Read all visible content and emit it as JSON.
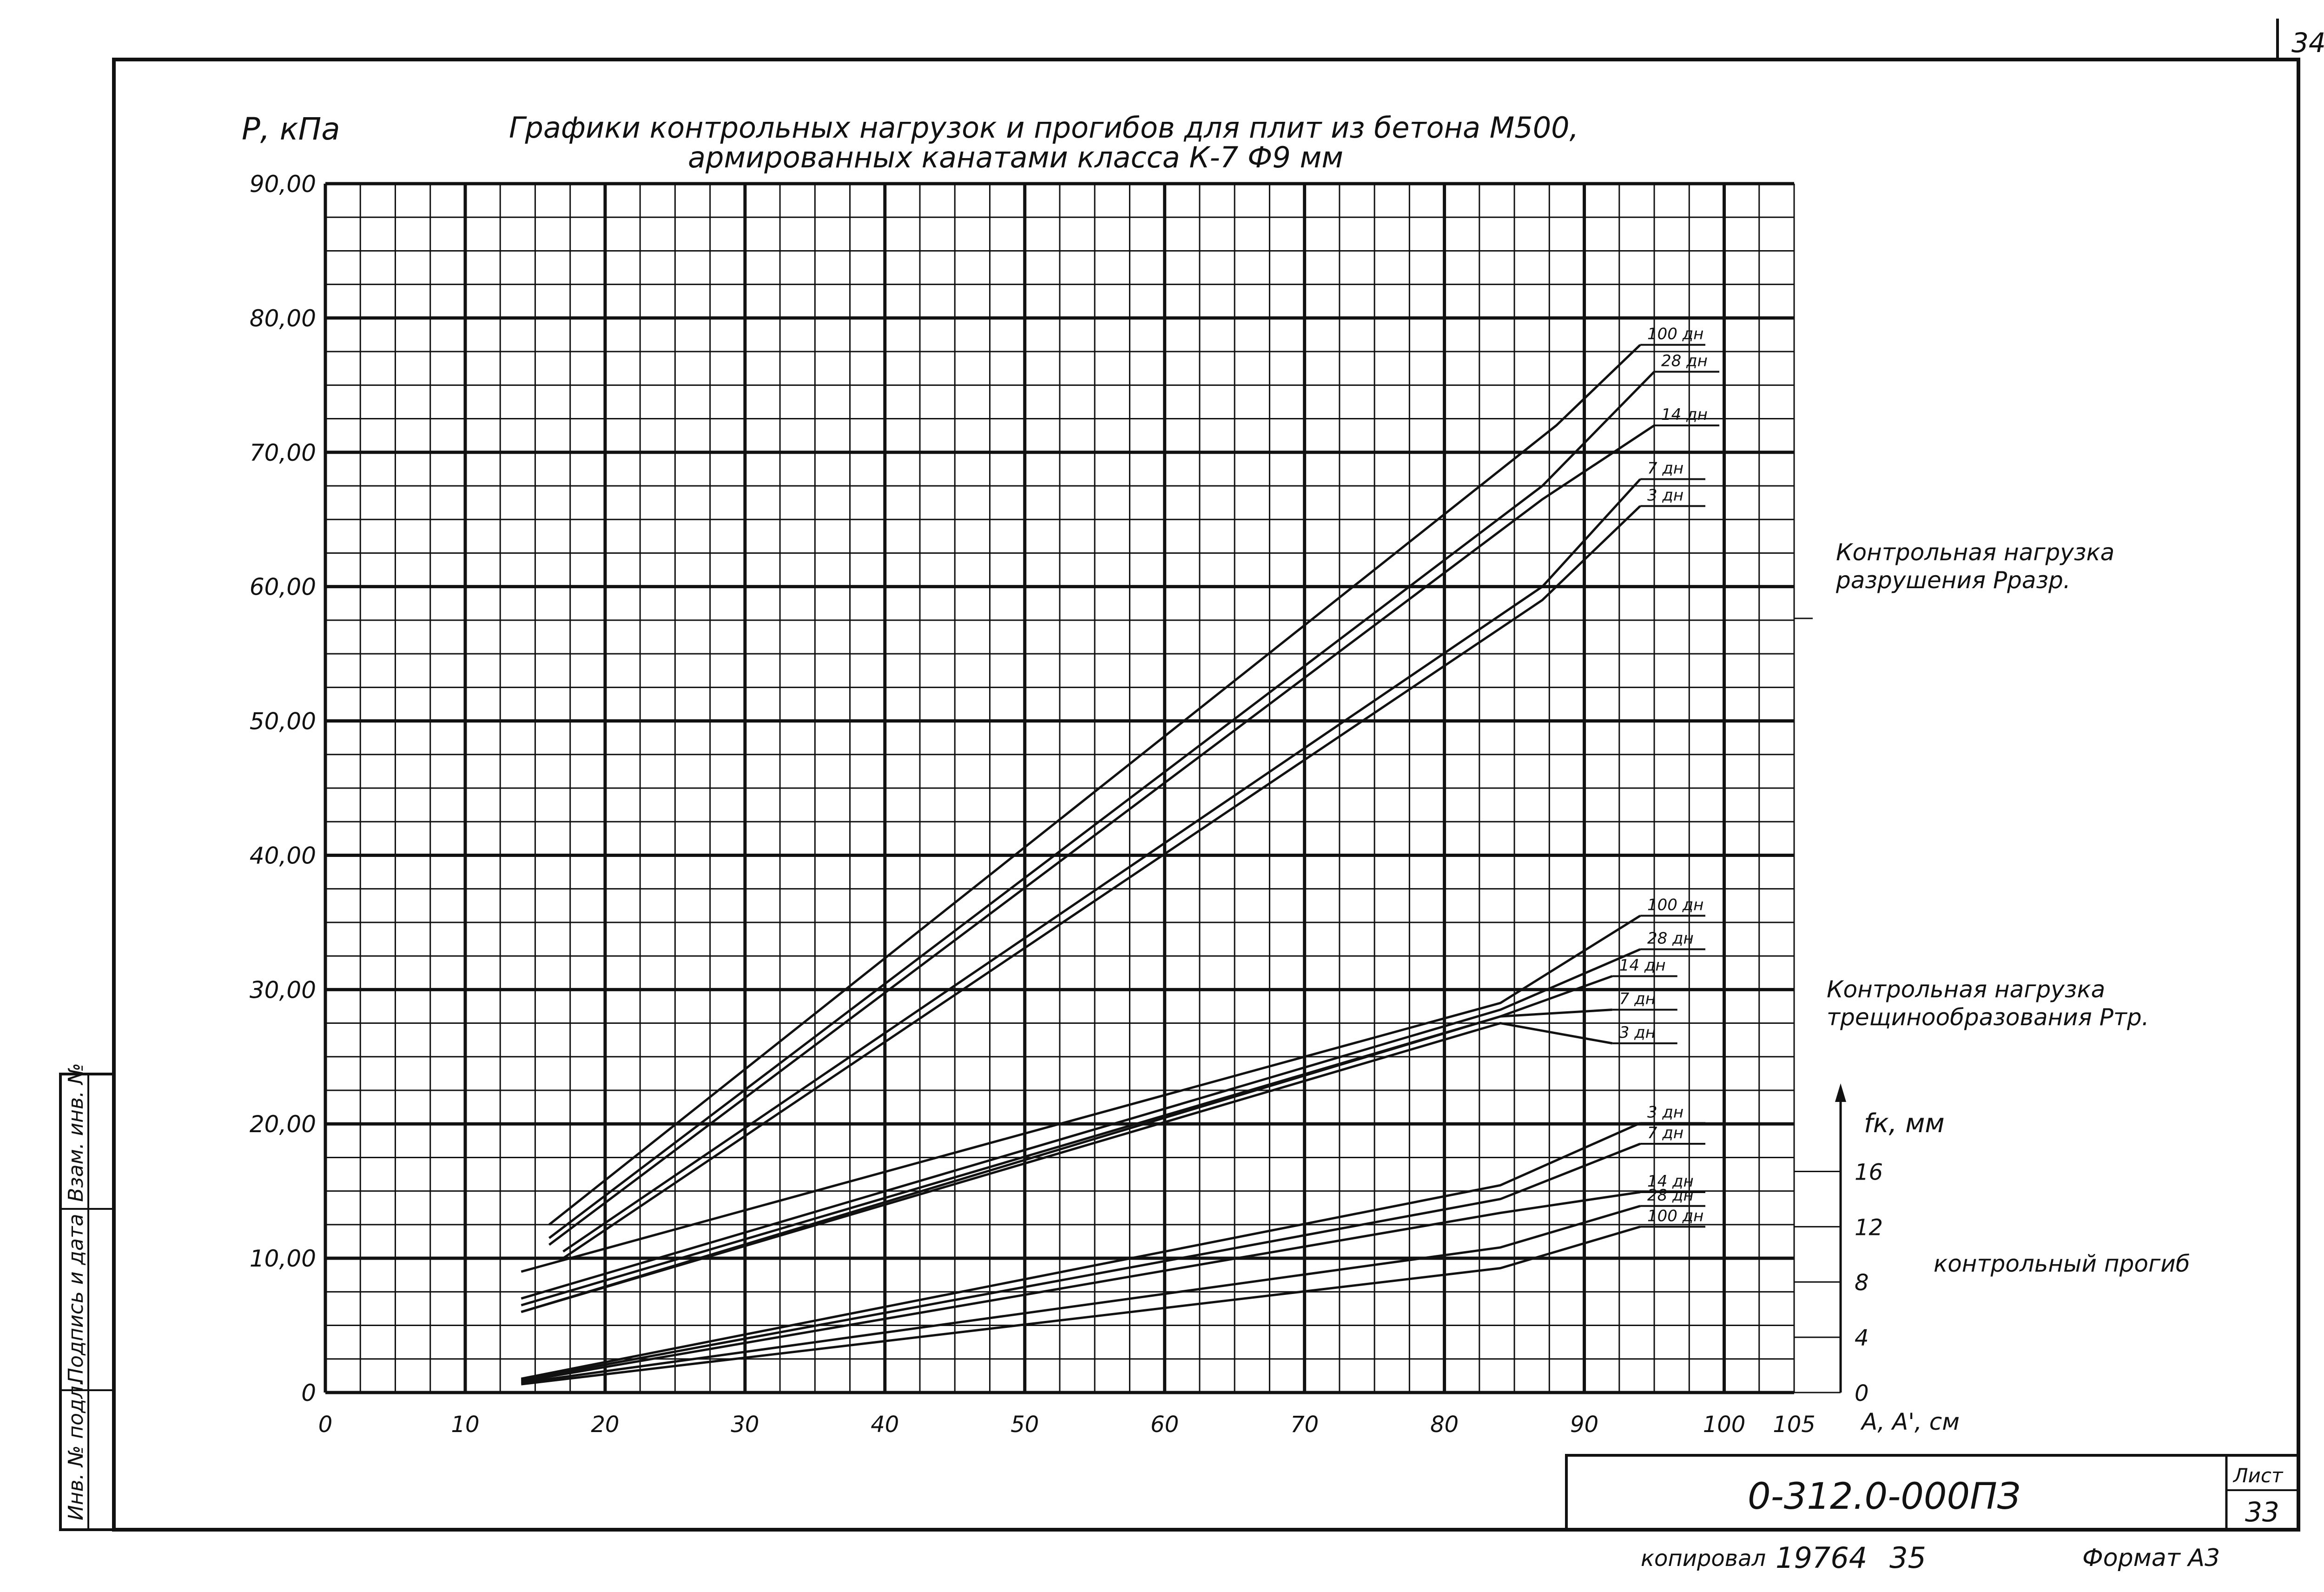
{
  "page_number": "34",
  "sheet": {
    "designation": "0-312.0-000ПЗ",
    "sheet_label": "Лист",
    "sheet_number": "33",
    "copied_text": "копировал",
    "copy_number": "19764",
    "copy_extra": "35",
    "format_text": "Формат А3"
  },
  "side_stamp": {
    "cells": [
      "Инв. № подл.",
      "Подпись и дата",
      "Взам. инв. №"
    ]
  },
  "chart_data": {
    "type": "line",
    "title_line1": "Графики контрольных нагрузок и прогибов для плит из бетона М500,",
    "title_line2": "армированных канатами класса К-7 Ф9 мм",
    "ylabel": "Р, кПа",
    "xlabel": "А, А', см",
    "y2label": "fк, мм",
    "xlim": [
      0,
      105
    ],
    "ylim": [
      0,
      90
    ],
    "y2lim": [
      0,
      18
    ],
    "x_ticks": [
      0,
      10,
      20,
      30,
      40,
      50,
      60,
      70,
      80,
      90,
      100,
      105
    ],
    "x_tick_labels": [
      "0",
      "10",
      "20",
      "30",
      "40",
      "50",
      "60",
      "70",
      "80",
      "90",
      "100",
      "105"
    ],
    "y_ticks": [
      0,
      10,
      20,
      30,
      40,
      50,
      60,
      70,
      80,
      90
    ],
    "y_tick_labels": [
      "0",
      "10,00",
      "20,00",
      "30,00",
      "40,00",
      "50,00",
      "60,00",
      "70,00",
      "80,00",
      "90,00"
    ],
    "y2_ticks": [
      0,
      4,
      8,
      12,
      16
    ],
    "y2_tick_labels": [
      "0",
      "4",
      "8",
      "12",
      "16"
    ],
    "grid": true,
    "groups": [
      {
        "label_line1": "Контрольная нагрузка",
        "label_line2": "разрушения Рразр.",
        "axis": "left",
        "series": [
          {
            "name": "100 дн",
            "x": [
              16,
              88,
              94
            ],
            "y": [
              12.5,
              72,
              78
            ]
          },
          {
            "name": "28 дн",
            "x": [
              16,
              87,
              95
            ],
            "y": [
              11.5,
              67.5,
              76
            ]
          },
          {
            "name": "14 дн",
            "x": [
              16,
              87,
              95
            ],
            "y": [
              11,
              66.5,
              72
            ]
          },
          {
            "name": "7 дн",
            "x": [
              17,
              87,
              94
            ],
            "y": [
              10.5,
              60,
              68
            ]
          },
          {
            "name": "3 дн",
            "x": [
              17,
              87,
              94
            ],
            "y": [
              10,
              59,
              66
            ]
          }
        ]
      },
      {
        "label_line1": "Контрольная нагрузка",
        "label_line2": "трещинообразования Ртр.",
        "axis": "left",
        "series": [
          {
            "name": "100 дн",
            "x": [
              14,
              84,
              94
            ],
            "y": [
              9,
              29,
              35.5
            ]
          },
          {
            "name": "28 дн",
            "x": [
              14,
              84,
              94
            ],
            "y": [
              7,
              28.5,
              33
            ]
          },
          {
            "name": "14 дн",
            "x": [
              14,
              84,
              92
            ],
            "y": [
              6.5,
              28,
              31
            ]
          },
          {
            "name": "7 дн",
            "x": [
              14,
              84,
              92
            ],
            "y": [
              6,
              28,
              28.5
            ]
          },
          {
            "name": "3 дн",
            "x": [
              14,
              84,
              92
            ],
            "y": [
              6,
              27.5,
              26
            ]
          }
        ]
      },
      {
        "label_line1": "контрольный прогиб",
        "label_line2": "",
        "axis": "right",
        "series": [
          {
            "name": "3 дн",
            "x": [
              14,
              84,
              94
            ],
            "y": [
              1,
              15,
              19.5
            ]
          },
          {
            "name": "7 дн",
            "x": [
              14,
              84,
              94
            ],
            "y": [
              0.9,
              14,
              18
            ]
          },
          {
            "name": "14 дн",
            "x": [
              14,
              84,
              94
            ],
            "y": [
              0.8,
              13,
              14.5
            ]
          },
          {
            "name": "28 дн",
            "x": [
              14,
              84,
              94
            ],
            "y": [
              0.7,
              10.5,
              13.5
            ]
          },
          {
            "name": "100 дн",
            "x": [
              14,
              84,
              94
            ],
            "y": [
              0.6,
              9,
              12
            ]
          }
        ]
      }
    ]
  }
}
